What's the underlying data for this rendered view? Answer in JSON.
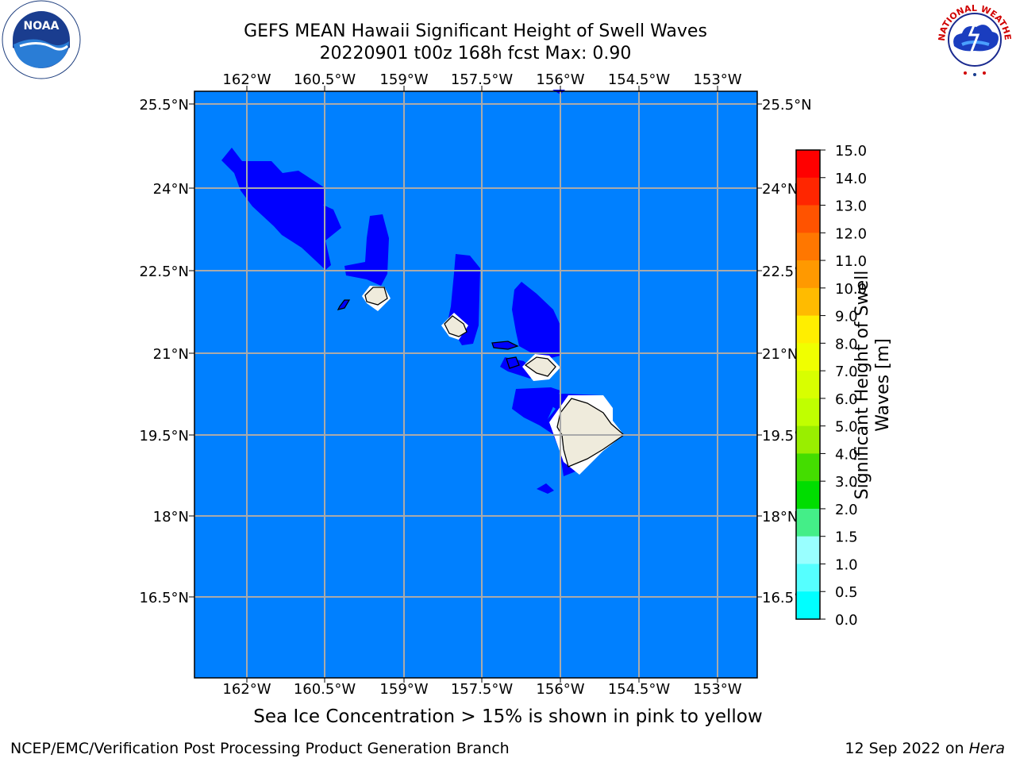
{
  "title_line1": "GEFS MEAN Hawaii Significant Height of Swell Waves",
  "title_line2": "20220901 t00z 168h fcst   Max: 0.90",
  "caption": "Sea Ice Concentration > 15% is shown in pink to yellow",
  "footer_left": "NCEP/EMC/Verification Post Processing Product Generation Branch",
  "footer_date": "12 Sep 2022 on",
  "footer_machine": "Hera",
  "logos": {
    "noaa_text": "NOAA",
    "noaa_ring": "NATIONAL OCEANIC AND ATMOSPHERIC ADMINISTRATION · U.S. DEPARTMENT OF COMMERCE",
    "nws_ring": "NATIONAL WEATHER SERVICE"
  },
  "map": {
    "lon_ticks": [
      "162°W",
      "160.5°W",
      "159°W",
      "157.5°W",
      "156°W",
      "154.5°W",
      "153°W"
    ],
    "lat_ticks": [
      "25.5°N",
      "24°N",
      "22.5°N",
      "21°N",
      "19.5°N",
      "18°N",
      "16.5°N"
    ],
    "ocean_color": "#0080ff",
    "low_swell_color": "#0000ff",
    "land_color": "#efebdc"
  },
  "colorbar": {
    "label_line1": "Significant Height of Swell",
    "label_line2": "Waves [m]",
    "ticks": [
      "15.0",
      "14.0",
      "13.0",
      "12.0",
      "11.0",
      "10.0",
      "9.0",
      "8.0",
      "7.0",
      "6.0",
      "5.0",
      "4.0",
      "3.0",
      "2.0",
      "1.5",
      "1.0",
      "0.5",
      "0.0"
    ],
    "colors_top_to_bottom": [
      "#ff0000",
      "#ff2600",
      "#ff5300",
      "#ff7700",
      "#ff9900",
      "#ffbb00",
      "#ffee00",
      "#f0ff00",
      "#d8ff00",
      "#c0ff00",
      "#99ee00",
      "#44dd00",
      "#00dd00",
      "#44ee88",
      "#99ffff",
      "#55ffff",
      "#00ffff",
      "#0080ff",
      "#0000ff"
    ]
  }
}
